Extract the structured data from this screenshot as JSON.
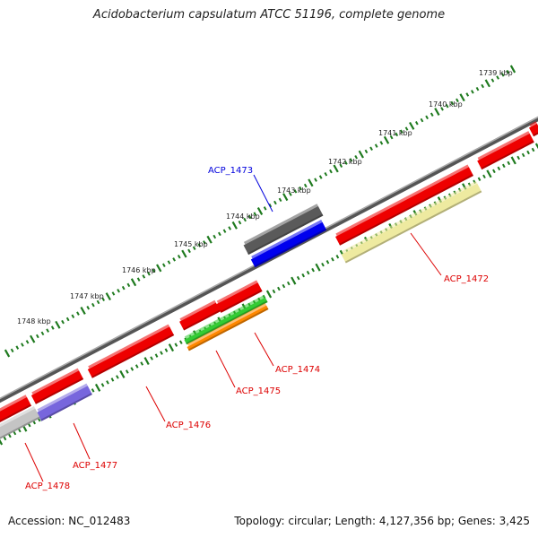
{
  "title": "Acidobacterium capsulatum ATCC 51196, complete genome",
  "footer": {
    "accession": "Accession: NC_012483",
    "summary": "Topology: circular; Length: 4,127,356 bp; Genes: 3,425"
  },
  "kbp_ticks": [
    {
      "label": "1739 kbp"
    },
    {
      "label": "1740 kbp"
    },
    {
      "label": "1741 kbp"
    },
    {
      "label": "1742 kbp"
    },
    {
      "label": "1743 kbp"
    },
    {
      "label": "1744 kbp"
    },
    {
      "label": "1745 kbp"
    },
    {
      "label": "1746 kbp"
    },
    {
      "label": "1747 kbp"
    },
    {
      "label": "1748 kbp"
    }
  ],
  "gene_labels": [
    {
      "name": "ACP_1472",
      "color": "#dd0000"
    },
    {
      "name": "ACP_1473",
      "color": "#0000dd"
    },
    {
      "name": "ACP_1474",
      "color": "#dd0000"
    },
    {
      "name": "ACP_1475",
      "color": "#dd0000"
    },
    {
      "name": "ACP_1476",
      "color": "#dd0000"
    },
    {
      "name": "ACP_1477",
      "color": "#dd0000"
    },
    {
      "name": "ACP_1478",
      "color": "#dd0000"
    }
  ],
  "colors": {
    "backbone": "#7a7a7a",
    "tick_green": "#1e7a1e",
    "gene_red": "#ee0000",
    "gene_dark_gray": "#5a5a5a",
    "gene_blue": "#0000ee",
    "gene_yellow": "#eeeaa0",
    "gene_green": "#33cc33",
    "gene_orange": "#ff8800",
    "gene_purple": "#7766dd",
    "gene_light_gray": "#c4c4c4"
  }
}
